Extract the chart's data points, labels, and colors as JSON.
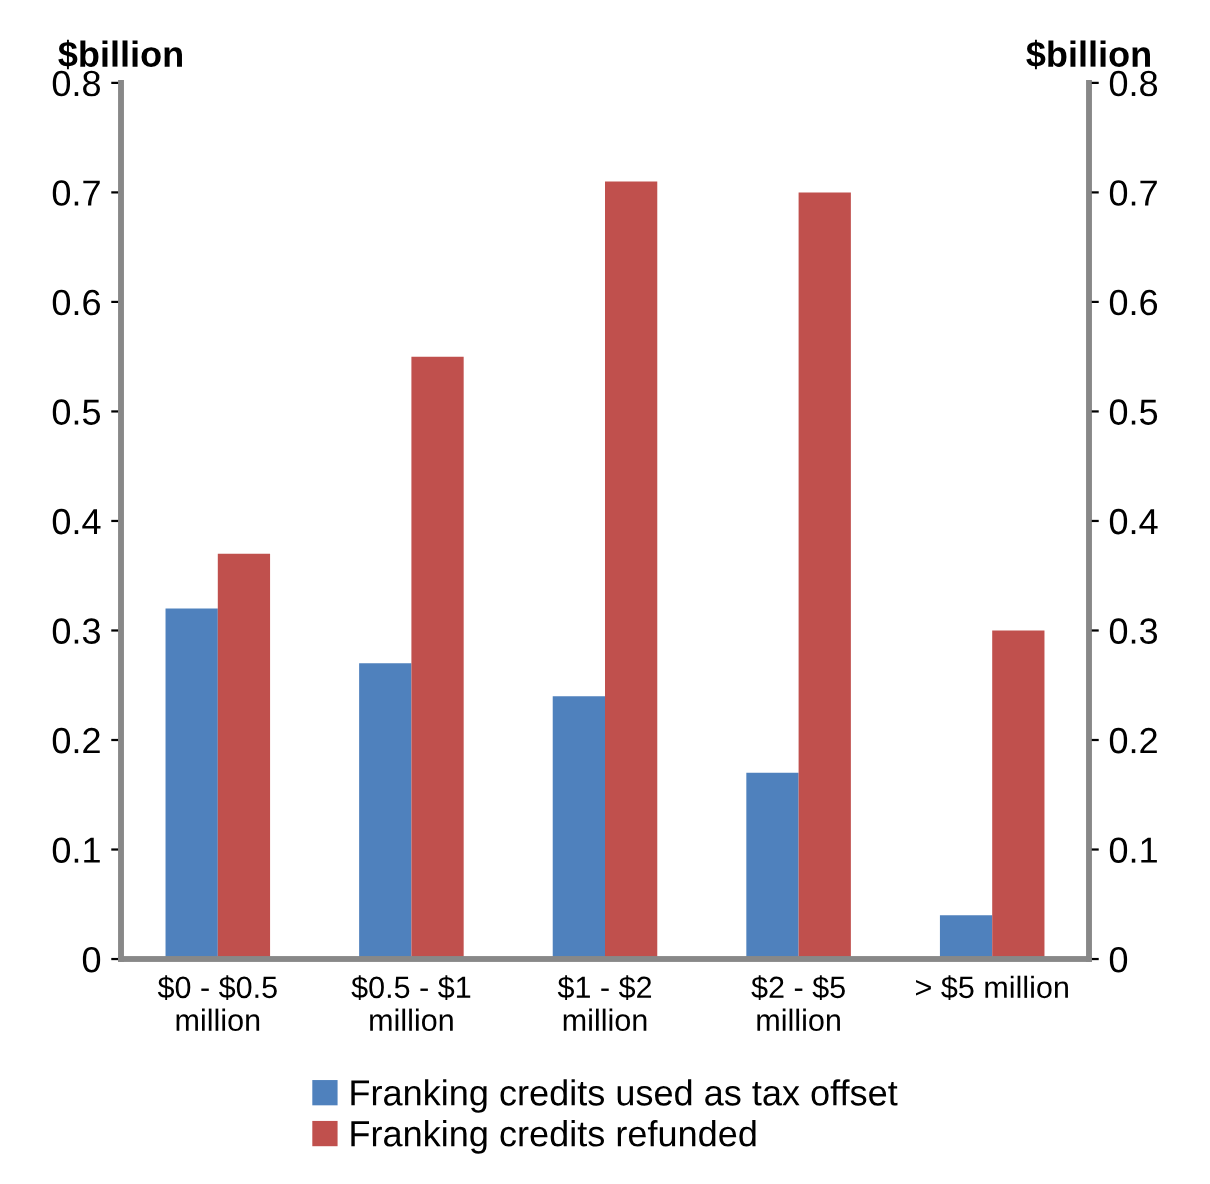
{
  "chart_data": {
    "type": "bar",
    "categories": [
      "$0 - $0.5\nmillion",
      "$0.5 - $1\nmillion",
      "$1 - $2\nmillion",
      "$2 - $5\nmillion",
      "> $5 million"
    ],
    "series": [
      {
        "name": "Franking credits used as tax offset",
        "color": "#4f81bd",
        "values": [
          0.32,
          0.27,
          0.24,
          0.17,
          0.04
        ]
      },
      {
        "name": "Franking credits refunded",
        "color": "#c0504d",
        "values": [
          0.37,
          0.55,
          0.71,
          0.7,
          0.3
        ]
      }
    ],
    "ylabel": "$billion",
    "y2label": "$billion",
    "ylim": [
      0,
      0.8
    ],
    "yticks": [
      0,
      0.1,
      0.2,
      0.3,
      0.4,
      0.5,
      0.6,
      0.7,
      0.8
    ],
    "y2lim": [
      0,
      0.8
    ],
    "y2ticks": [
      0,
      0.1,
      0.2,
      0.3,
      0.4,
      0.5,
      0.6,
      0.7,
      0.8
    ],
    "legend": "bottom",
    "grid": false
  }
}
